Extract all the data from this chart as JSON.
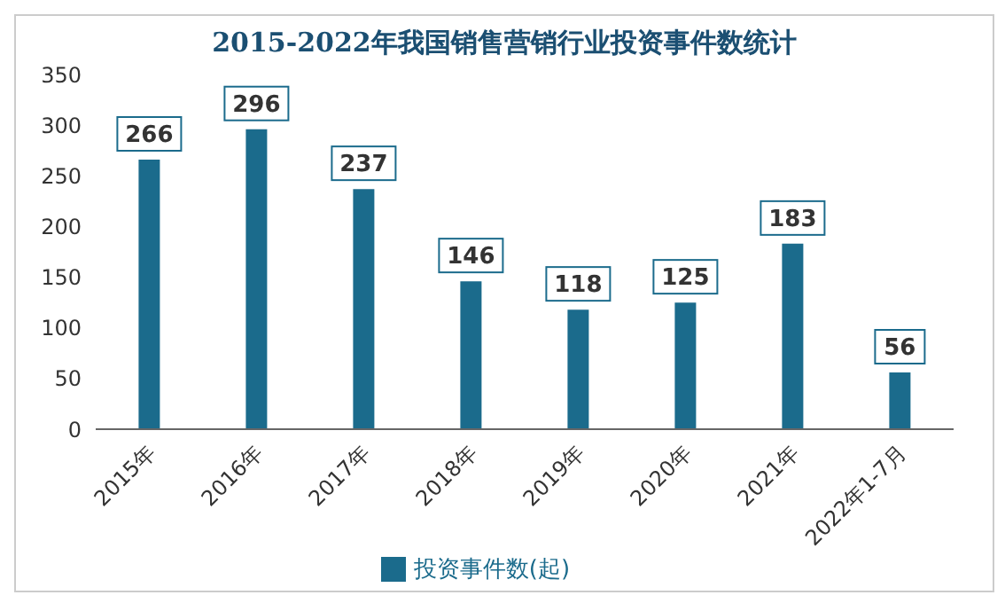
{
  "chart_data": {
    "type": "bar",
    "title": "2015-2022年我国销售营销行业投资事件数统计",
    "categories": [
      "2015年",
      "2016年",
      "2017年",
      "2018年",
      "2019年",
      "2020年",
      "2021年",
      "2022年1-7月"
    ],
    "series": [
      {
        "name": "投资事件数(起)",
        "color": "#1b6b8c",
        "values": [
          266,
          296,
          237,
          146,
          118,
          125,
          183,
          56
        ]
      }
    ],
    "ylim": [
      0,
      350
    ],
    "yticks": [
      0,
      50,
      100,
      150,
      200,
      250,
      300,
      350
    ],
    "grid": false,
    "legend": "bottom",
    "data_labels": true
  }
}
